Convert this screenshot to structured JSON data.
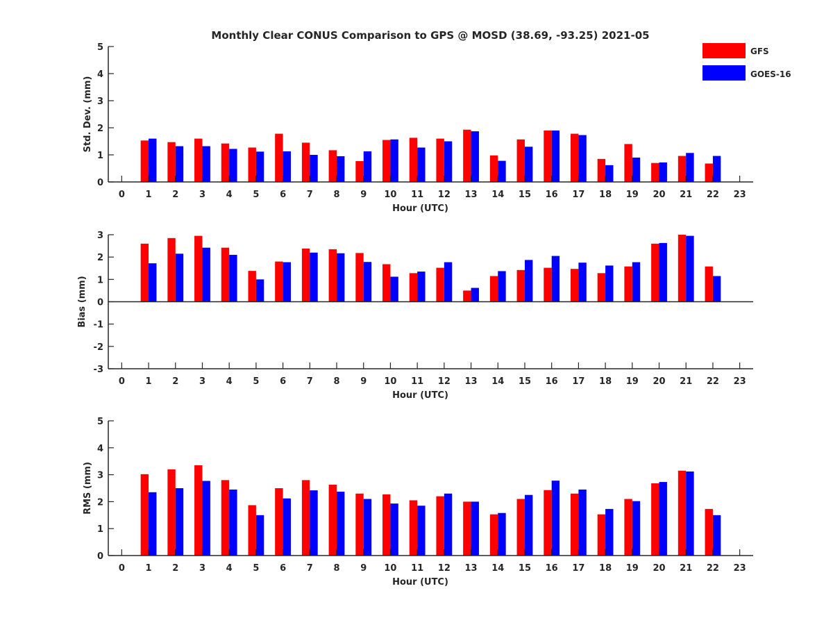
{
  "title": "Monthly Clear CONUS Comparison to GPS @ MOSD (38.69, -93.25) 2021-05",
  "legend": {
    "placement": "top-right",
    "entries": [
      {
        "label": "GFS",
        "color": "#ff0000"
      },
      {
        "label": "GOES-16",
        "color": "#0000ff"
      }
    ]
  },
  "chart_data": [
    {
      "type": "bar",
      "xlabel": "Hour (UTC)",
      "ylabel": "Std. Dev. (mm)",
      "ylim": [
        0,
        5
      ],
      "yticks": [
        0,
        1,
        2,
        3,
        4,
        5
      ],
      "xlim": [
        -0.5,
        23.5
      ],
      "categories": [
        0,
        1,
        2,
        3,
        4,
        5,
        6,
        7,
        8,
        9,
        10,
        11,
        12,
        13,
        14,
        15,
        16,
        17,
        18,
        19,
        20,
        21,
        22,
        23
      ],
      "series": [
        {
          "name": "GFS",
          "color": "#ff0000",
          "values": [
            null,
            1.53,
            1.47,
            1.6,
            1.42,
            1.27,
            1.78,
            1.45,
            1.17,
            0.77,
            1.55,
            1.63,
            1.6,
            1.93,
            0.98,
            1.57,
            1.9,
            1.78,
            0.85,
            1.4,
            0.7,
            0.96,
            0.68,
            null
          ]
        },
        {
          "name": "GOES-16",
          "color": "#0000ff",
          "values": [
            null,
            1.6,
            1.32,
            1.32,
            1.22,
            1.12,
            1.13,
            1.0,
            0.95,
            1.13,
            1.57,
            1.27,
            1.5,
            1.87,
            0.78,
            1.3,
            1.9,
            1.73,
            0.62,
            0.9,
            0.72,
            1.07,
            0.96,
            null
          ]
        }
      ]
    },
    {
      "type": "bar",
      "xlabel": "Hour (UTC)",
      "ylabel": "Bias (mm)",
      "ylim": [
        -3,
        3
      ],
      "yticks": [
        -3,
        -2,
        -1,
        0,
        1,
        2,
        3
      ],
      "xlim": [
        -0.5,
        23.5
      ],
      "categories": [
        0,
        1,
        2,
        3,
        4,
        5,
        6,
        7,
        8,
        9,
        10,
        11,
        12,
        13,
        14,
        15,
        16,
        17,
        18,
        19,
        20,
        21,
        22,
        23
      ],
      "series": [
        {
          "name": "GFS",
          "color": "#ff0000",
          "values": [
            null,
            2.6,
            2.85,
            2.95,
            2.42,
            1.38,
            1.8,
            2.38,
            2.35,
            2.18,
            1.68,
            1.28,
            1.52,
            0.5,
            1.15,
            1.42,
            1.52,
            1.47,
            1.28,
            1.58,
            2.6,
            3.0,
            1.58,
            null
          ]
        },
        {
          "name": "GOES-16",
          "color": "#0000ff",
          "values": [
            null,
            1.72,
            2.15,
            2.42,
            2.1,
            1.0,
            1.77,
            2.2,
            2.17,
            1.78,
            1.12,
            1.35,
            1.77,
            0.62,
            1.37,
            1.87,
            2.05,
            1.75,
            1.62,
            1.77,
            2.63,
            2.95,
            1.15,
            null
          ]
        }
      ]
    },
    {
      "type": "bar",
      "xlabel": "Hour (UTC)",
      "ylabel": "RMS (mm)",
      "ylim": [
        0,
        5
      ],
      "yticks": [
        0,
        1,
        2,
        3,
        4,
        5
      ],
      "xlim": [
        -0.5,
        23.5
      ],
      "categories": [
        0,
        1,
        2,
        3,
        4,
        5,
        6,
        7,
        8,
        9,
        10,
        11,
        12,
        13,
        14,
        15,
        16,
        17,
        18,
        19,
        20,
        21,
        22,
        23
      ],
      "series": [
        {
          "name": "GFS",
          "color": "#ff0000",
          "values": [
            null,
            3.02,
            3.2,
            3.35,
            2.8,
            1.87,
            2.5,
            2.8,
            2.63,
            2.3,
            2.27,
            2.05,
            2.2,
            2.0,
            1.53,
            2.1,
            2.43,
            2.3,
            1.53,
            2.1,
            2.68,
            3.15,
            1.73,
            null
          ]
        },
        {
          "name": "GOES-16",
          "color": "#0000ff",
          "values": [
            null,
            2.35,
            2.5,
            2.77,
            2.45,
            1.5,
            2.12,
            2.42,
            2.37,
            2.1,
            1.93,
            1.85,
            2.3,
            2.0,
            1.58,
            2.25,
            2.78,
            2.45,
            1.73,
            2.02,
            2.73,
            3.12,
            1.5,
            null
          ]
        }
      ]
    }
  ]
}
